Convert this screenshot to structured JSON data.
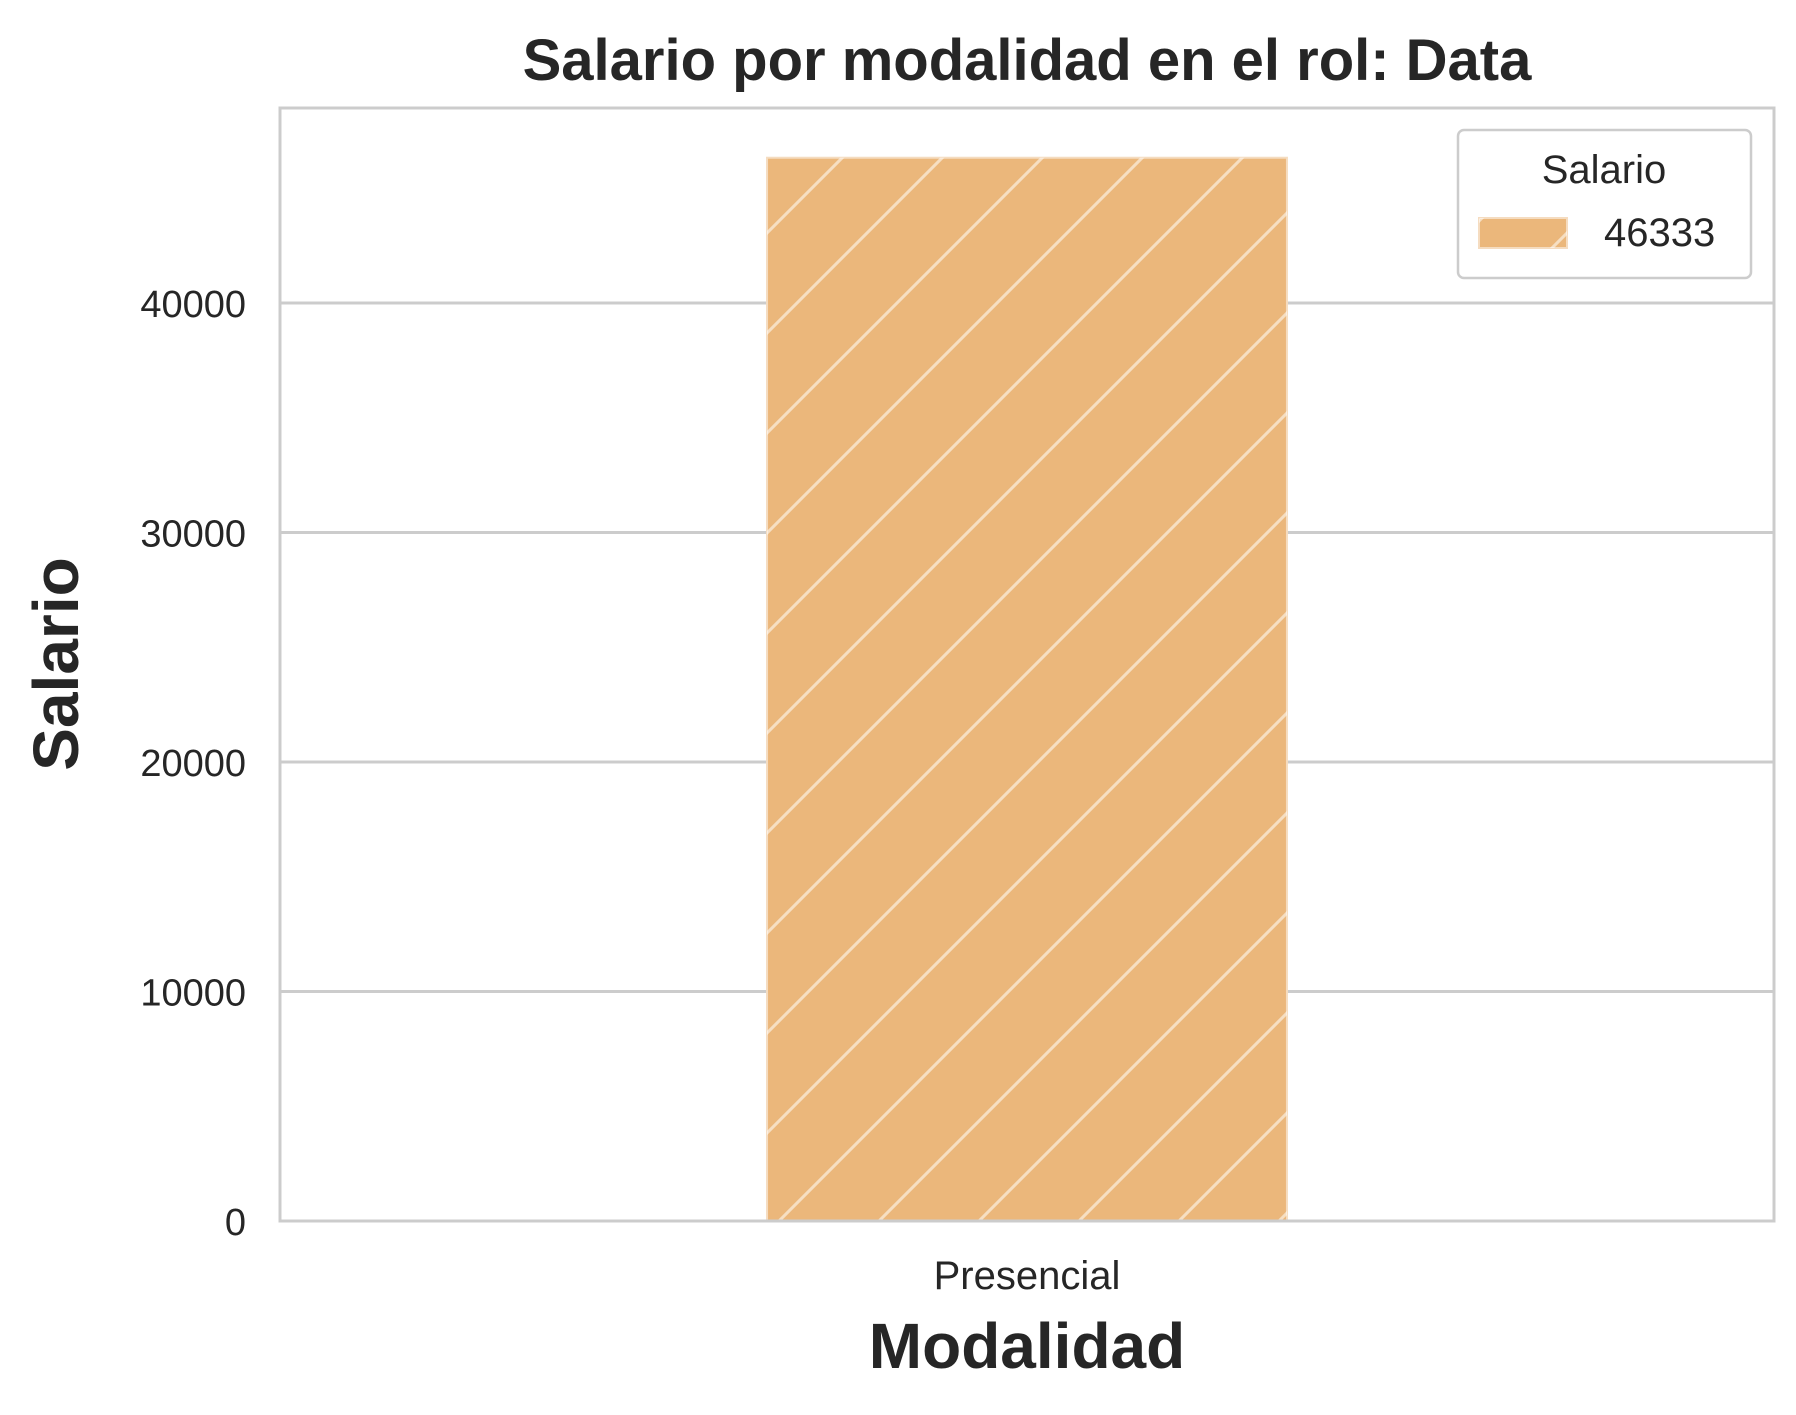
{
  "chart_data": {
    "type": "bar",
    "title": "Salario por modalidad en el rol: Data",
    "xlabel": "Modalidad",
    "ylabel": "Salario",
    "categories": [
      "Presencial"
    ],
    "series": [
      {
        "name": "46333",
        "values": [
          46333
        ]
      }
    ],
    "ylim": [
      0,
      48500
    ],
    "yticks": [
      0,
      10000,
      20000,
      30000,
      40000
    ],
    "ytick_labels": [
      "0",
      "10000",
      "20000",
      "30000",
      "40000"
    ],
    "grid": "horizontal",
    "legend": {
      "title": "Salario",
      "position": "top-right",
      "entries": [
        "46333"
      ]
    },
    "bar_color": "#EBB77B",
    "hatch": "diagonal"
  }
}
